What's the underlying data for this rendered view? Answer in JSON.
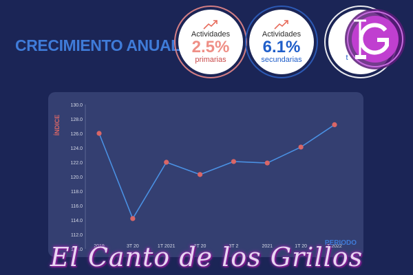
{
  "headline": "CRECIMIENTO ANUAL:",
  "badges": [
    {
      "label": "Actividades",
      "value": "2.5%",
      "sublabel": "primarias",
      "color": "#ef8f86"
    },
    {
      "label": "Actividades",
      "value": "6.1%",
      "sublabel": "secundarias",
      "color": "#1f5ec9"
    },
    {
      "label": "",
      "value": "",
      "sublabel": "t",
      "color": "#ffffff"
    }
  ],
  "icons": {
    "trend": "trend-up-icon",
    "logo": "g-logo-icon"
  },
  "watermark": "El Canto de los Grillos",
  "chart_data": {
    "type": "line",
    "ylabel": "ÍNDICE",
    "xlabel": "PERIODO",
    "ylim": [
      110,
      130
    ],
    "y_ticks": [
      "130.0",
      "128.0",
      "126.0",
      "124.0",
      "122.0",
      "120.0",
      "118.0",
      "116.0",
      "114.0",
      "112.0",
      "110.0"
    ],
    "categories": [
      "2019",
      "3T 2020",
      "1T 2021",
      "2T 2021",
      "3T 2021",
      "4T 2021",
      "1T 2022",
      "2T 2022"
    ],
    "x_labels_visible": [
      "2019",
      "3T 20",
      "1T 2021",
      "2T 20",
      "3T 2",
      "2021",
      "1T 20",
      "T 2022"
    ],
    "values": [
      126.0,
      114.2,
      122.0,
      120.3,
      122.1,
      121.9,
      124.1,
      127.2
    ],
    "line_color": "#4a90e2",
    "marker_color": "#d96666",
    "grid": false
  }
}
